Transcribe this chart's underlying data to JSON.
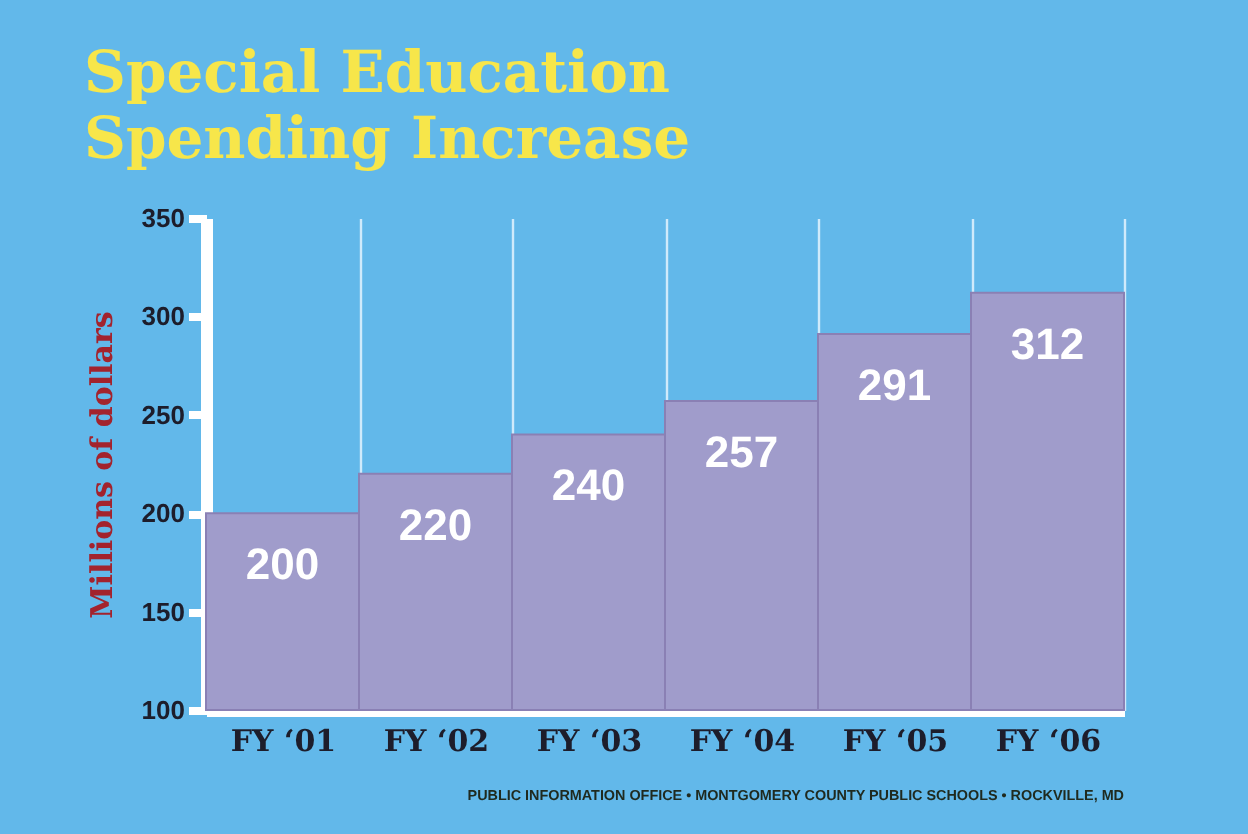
{
  "chart_data": {
    "type": "bar",
    "title": "Special Education Spending Increase",
    "ylabel": "Millions of dollars",
    "categories": [
      "FY ‘01",
      "FY ‘02",
      "FY ‘03",
      "FY ‘04",
      "FY ‘05",
      "FY ‘06"
    ],
    "values": [
      200,
      220,
      240,
      257,
      291,
      312
    ],
    "color": "#a09ccb",
    "ylim": [
      100,
      350
    ],
    "yticks": [
      100,
      150,
      200,
      250,
      300,
      350
    ],
    "grid": "x",
    "data_labels": true,
    "annotations": [
      "PUBLIC INFORMATION OFFICE • MONTGOMERY COUNTY PUBLIC SCHOOLS • ROCKVILLE, MD"
    ]
  }
}
